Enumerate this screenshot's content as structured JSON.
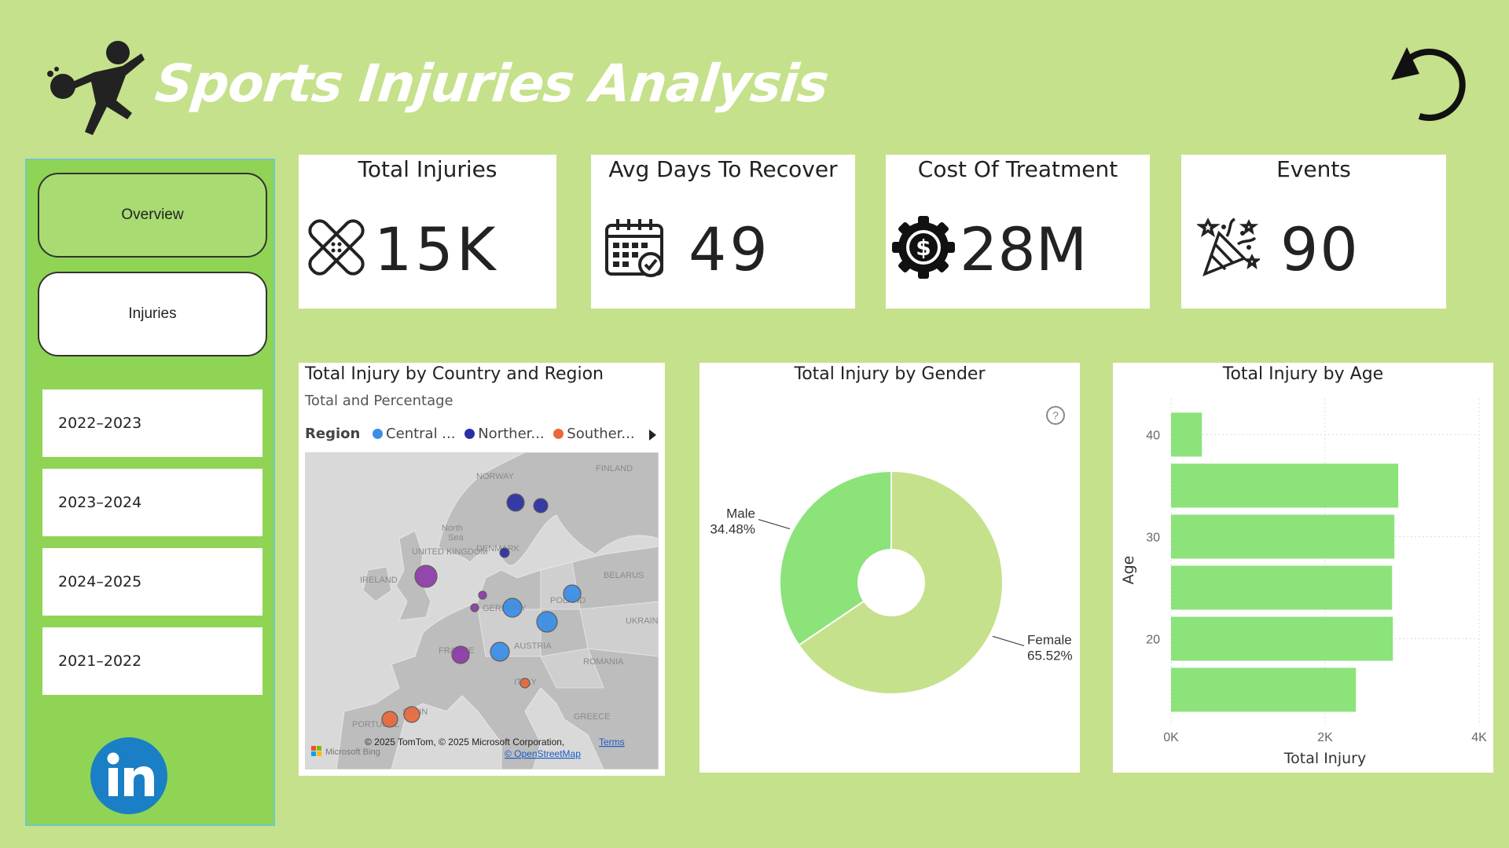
{
  "header": {
    "title": "Sports Injuries Analysis",
    "logo_icon": "athlete-kick-icon",
    "reset_icon": "reset-icon"
  },
  "sidebar": {
    "nav": [
      {
        "label": "Overview",
        "active": true
      },
      {
        "label": "Injuries",
        "active": false
      }
    ],
    "seasons": [
      "2022–2023",
      "2023–2024",
      "2024–2025",
      "2021–2022"
    ],
    "social_icon": "linkedin-icon"
  },
  "kpis": [
    {
      "title": "Total Injuries",
      "value": "15K",
      "icon": "bandage-icon"
    },
    {
      "title": "Avg Days To Recover",
      "value": "49",
      "icon": "calendar-check-icon"
    },
    {
      "title": "Cost Of Treatment",
      "value": "28M",
      "icon": "dollar-gear-icon"
    },
    {
      "title": "Events",
      "value": "90",
      "icon": "party-popper-icon"
    }
  ],
  "map_panel": {
    "title": "Total Injury by Country and Region",
    "subtitle": "Total and Percentage",
    "legend_title": "Region",
    "legend": [
      {
        "label": "Central ...",
        "color": "#3a8ee6"
      },
      {
        "label": "Norther...",
        "color": "#2b2fa6"
      },
      {
        "label": "Souther...",
        "color": "#e8693a"
      }
    ],
    "map_labels": {
      "finland": "FINLAND",
      "norway": "NORWAY",
      "north_sea": "North Sea",
      "denmark": "DENMARK",
      "uk": "UNITED KINGDOM",
      "ireland": "IRELAND",
      "belarus": "BELARUS",
      "poland": "POLAND",
      "germany": "GERMANY",
      "ukraine": "UKRAINE",
      "france": "FRANCE",
      "austria": "AUSTRIA",
      "romania": "ROMANIA",
      "italy": "ITALY",
      "spain": "SPAIN",
      "portugal": "PORTUGAL",
      "greece": "GREECE"
    },
    "attribution": "© 2025 TomTom, © 2025 Microsoft Corporation,",
    "terms": "Terms",
    "osm": "© OpenStreetMap",
    "bing": "Microsoft Bing"
  },
  "gender_panel": {
    "title": "Total Injury by Gender",
    "help_icon": "help-icon",
    "chart_data": {
      "type": "pie",
      "slices": [
        {
          "label": "Male",
          "pct_label": "34.48%",
          "value": 34.48,
          "color": "#8be37a"
        },
        {
          "label": "Female",
          "pct_label": "65.52%",
          "value": 65.52,
          "color": "#c5e18b"
        }
      ]
    }
  },
  "age_panel": {
    "title": "Total Injury by Age",
    "chart_data": {
      "type": "bar",
      "orientation": "horizontal",
      "xlabel": "Total Injury",
      "ylabel": "Age",
      "xlim": [
        0,
        4000
      ],
      "x_ticks": [
        "0K",
        "2K",
        "4K"
      ],
      "y_ticks": [
        "40",
        "30",
        "20"
      ],
      "bars": [
        {
          "age": 40,
          "value": 400
        },
        {
          "age": 35,
          "value": 2950
        },
        {
          "age": 30,
          "value": 2900
        },
        {
          "age": 25,
          "value": 2870
        },
        {
          "age": 20,
          "value": 2880
        },
        {
          "age": 15,
          "value": 2400
        }
      ],
      "color": "#8be37a",
      "grid": true
    }
  }
}
